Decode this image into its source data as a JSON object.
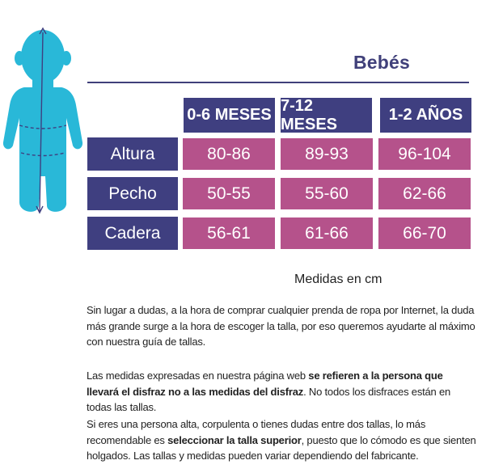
{
  "title": "Bebés",
  "table": {
    "columns": [
      "0-6 MESES",
      "7-12 MESES",
      "1-2 AÑOS"
    ],
    "rows": [
      {
        "label": "Altura",
        "values": [
          "80-86",
          "89-93",
          "96-104"
        ]
      },
      {
        "label": "Pecho",
        "values": [
          "50-55",
          "55-60",
          "62-66"
        ]
      },
      {
        "label": "Cadera",
        "values": [
          "56-61",
          "61-66",
          "66-70"
        ]
      }
    ]
  },
  "units_note": "Medidas en cm",
  "paragraphs": {
    "p1": "Sin lugar a dudas, a la hora de comprar cualquier prenda de ropa por Internet, la duda más grande surge a la hora de escoger la talla, por eso queremos ayudarte al máximo con nuestra guía de tallas.",
    "p2_a": "Las medidas expresadas en nuestra página web ",
    "p2_b": "se refieren a la persona que llevará el disfraz no a las medidas del disfraz",
    "p2_c": ". No todos los disfraces están en todas las tallas.",
    "p3_a": "Si eres una persona alta, corpulenta o tienes dudas entre dos tallas, lo más recomendable es ",
    "p3_b": "seleccionar la talla superior",
    "p3_c": ", puesto que lo cómodo es que sienten holgados. Las tallas y medidas pueden variar dependiendo del fabricante."
  },
  "colors": {
    "navy": "#3f3f80",
    "magenta": "#b5528b",
    "figure": "#29b8d8"
  }
}
